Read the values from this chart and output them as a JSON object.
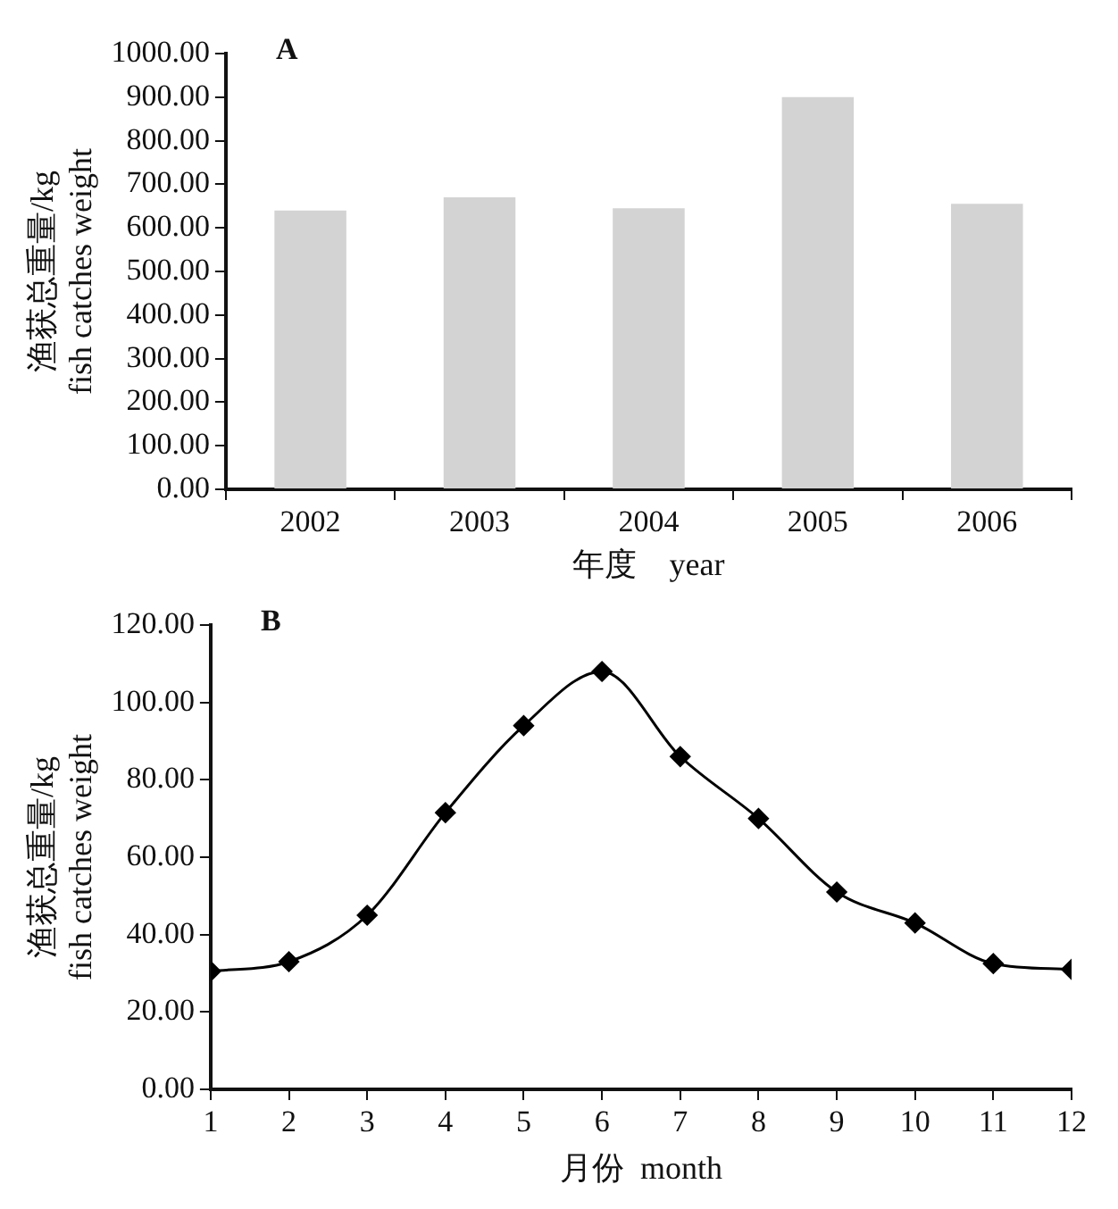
{
  "chart_data": [
    {
      "type": "bar",
      "title": "A",
      "xlabel": "年度　year",
      "ylabel": "渔获总重量/kg\nfish catches weight",
      "categories": [
        "2002",
        "2003",
        "2004",
        "2005",
        "2006"
      ],
      "series": [
        {
          "color": "#d3d3d3",
          "values": [
            640,
            670,
            645,
            900,
            655
          ]
        }
      ],
      "ylim": [
        0,
        1000
      ],
      "yticks": [
        {
          "value": 0,
          "label": "0.00"
        },
        {
          "value": 100,
          "label": "100.00"
        },
        {
          "value": 200,
          "label": "200.00"
        },
        {
          "value": 300,
          "label": "300.00"
        },
        {
          "value": 400,
          "label": "400.00"
        },
        {
          "value": 500,
          "label": "500.00"
        },
        {
          "value": 600,
          "label": "600.00"
        },
        {
          "value": 700,
          "label": "700.00"
        },
        {
          "value": 800,
          "label": "800.00"
        },
        {
          "value": 900,
          "label": "900.00"
        },
        {
          "value": 1000,
          "label": "1000.00"
        }
      ],
      "grid": false,
      "legend": false
    },
    {
      "type": "line",
      "title": "B",
      "xlabel": "月份  month",
      "ylabel": "渔获总重量/kg\nfish catches weight",
      "x": [
        1,
        2,
        3,
        4,
        5,
        6,
        7,
        8,
        9,
        10,
        11,
        12
      ],
      "series": [
        {
          "color": "#000000",
          "values": [
            30.5,
            33,
            45,
            71.5,
            94,
            108,
            86,
            70,
            51,
            43,
            32.5,
            31
          ]
        }
      ],
      "xlim": [
        1,
        12
      ],
      "xticks": [
        1,
        2,
        3,
        4,
        5,
        6,
        7,
        8,
        9,
        10,
        11,
        12
      ],
      "ylim": [
        0,
        120
      ],
      "yticks": [
        {
          "value": 0,
          "label": "0.00"
        },
        {
          "value": 20,
          "label": "20.00"
        },
        {
          "value": 40,
          "label": "40.00"
        },
        {
          "value": 60,
          "label": "60.00"
        },
        {
          "value": 80,
          "label": "80.00"
        },
        {
          "value": 100,
          "label": "100.00"
        },
        {
          "value": 120,
          "label": "120.00"
        }
      ],
      "marker": "diamond",
      "line_style": "solid",
      "grid": false,
      "legend": false
    }
  ]
}
